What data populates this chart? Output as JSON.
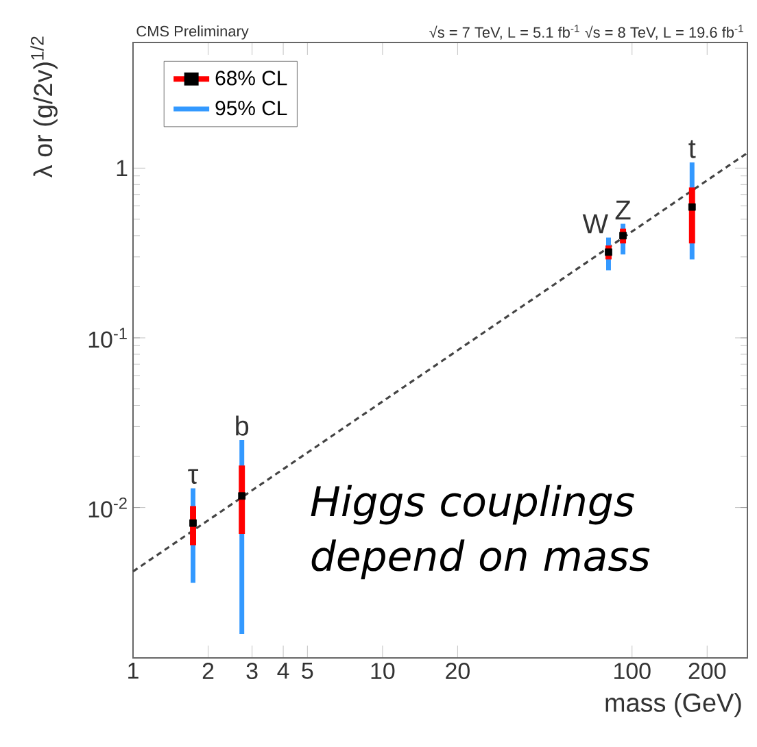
{
  "chart_data": {
    "type": "scatter",
    "title": "CMS Preliminary",
    "subtitle": "√s = 7 TeV, L = 5.1 fb$^{-1}$  √s = 8 TeV, L = 19.6 fb$^{-1}$",
    "xlabel": "mass (GeV)",
    "ylabel": "λ or (g/2v)$^{1/2}$",
    "x": [
      1.74,
      2.73,
      80.5,
      92,
      174
    ],
    "series": [
      {
        "name": "68% CL",
        "type": "bar",
        "color": "#ff0000",
        "base": [
          0.006,
          0.007,
          0.29,
          0.36,
          0.36
        ],
        "values": [
          0.0042,
          0.0107,
          0.06,
          0.08,
          0.41
        ]
      },
      {
        "name": "95% CL",
        "type": "bar",
        "color": "#3399ff",
        "base": [
          0.0036,
          0.0018,
          0.25,
          0.31,
          0.29
        ],
        "values": [
          0.0094,
          0.0232,
          0.14,
          0.16,
          0.79
        ]
      },
      {
        "color": "#000000",
        "marker": "square",
        "values": [
          0.0081,
          0.0117,
          0.32,
          0.4,
          0.59
        ]
      },
      {
        "type": "line",
        "color": "#444444",
        "line_style": "dashed",
        "marker": "none",
        "x": [
          1,
          290
        ],
        "values": [
          0.0042,
          1.23
        ]
      }
    ],
    "annotations": [
      "τ",
      "b",
      "W",
      "Z",
      "t",
      "Higgs couplings depend on mass"
    ],
    "log": "xy",
    "xlim": [
      1,
      290
    ],
    "ylim": [
      0.0013,
      5.5
    ],
    "xticks": [
      1,
      2,
      3,
      4,
      5,
      10,
      20,
      100,
      200
    ],
    "yticks": [
      {
        "value": 0.01,
        "label": "10$^{-2}$"
      },
      {
        "value": 0.1,
        "label": "10$^{-1}$"
      },
      1
    ],
    "legend": "top left"
  }
}
